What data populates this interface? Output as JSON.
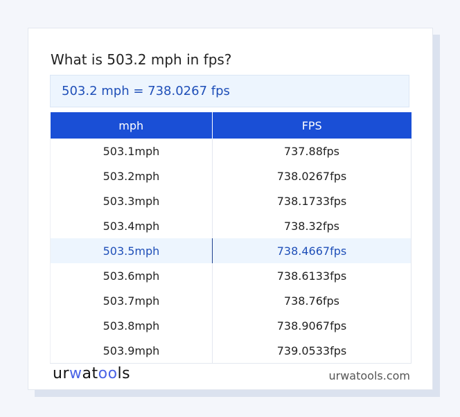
{
  "title": "What is 503.2 mph in fps?",
  "result": "503.2 mph = 738.0267 fps",
  "table": {
    "headers": [
      "mph",
      "FPS"
    ],
    "rows": [
      [
        "503.1mph",
        "737.88fps"
      ],
      [
        "503.2mph",
        "738.0267fps"
      ],
      [
        "503.3mph",
        "738.1733fps"
      ],
      [
        "503.4mph",
        "738.32fps"
      ],
      [
        "503.5mph",
        "738.4667fps"
      ],
      [
        "503.6mph",
        "738.6133fps"
      ],
      [
        "503.7mph",
        "738.76fps"
      ],
      [
        "503.8mph",
        "738.9067fps"
      ],
      [
        "503.9mph",
        "739.0533fps"
      ]
    ],
    "highlighted_row": 4
  },
  "footer": {
    "logo": {
      "part1": "ur",
      "part2": "w",
      "part3": "at",
      "part4": "oo",
      "part5": "ls"
    },
    "site": "urwatools.com"
  },
  "colors": {
    "accent": "#1a4fd6",
    "highlight_bg": "#edf5fe",
    "highlight_text": "#1f4fb8"
  }
}
